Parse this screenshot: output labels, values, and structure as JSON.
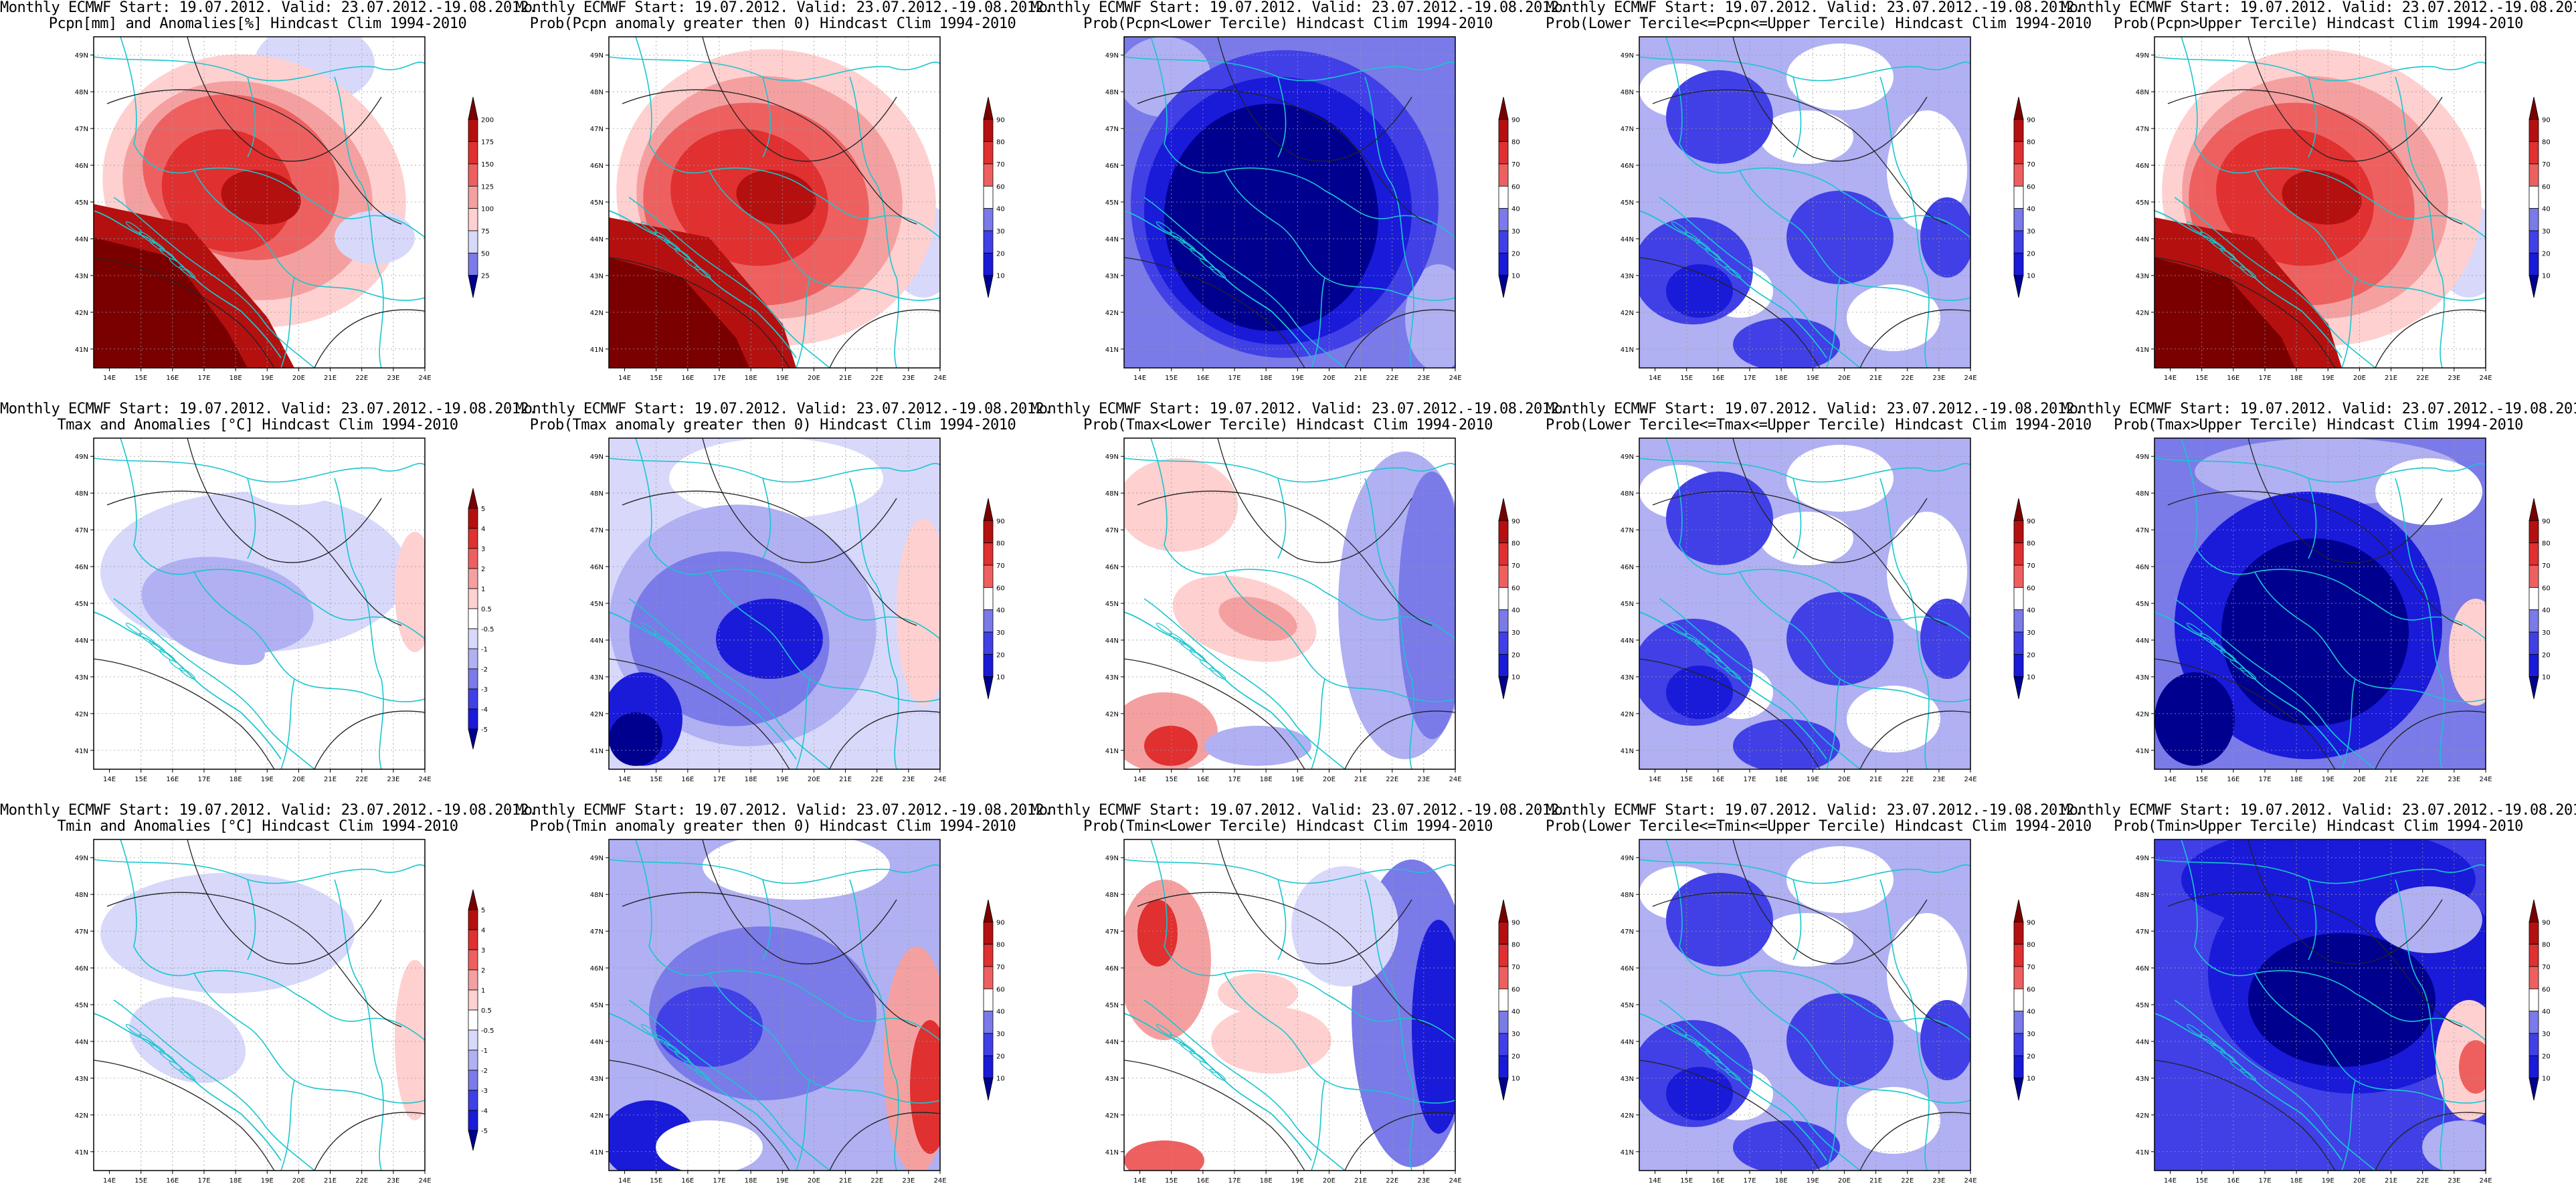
{
  "header_line": "Monthly ECMWF Start: 19.07.2012. Valid: 23.07.2012.-19.08.2012.",
  "map_bounds": {
    "lon": [
      13.5,
      24
    ],
    "lat": [
      40.5,
      49.5
    ]
  },
  "x_ticks": [
    "14E",
    "15E",
    "16E",
    "17E",
    "18E",
    "19E",
    "20E",
    "21E",
    "22E",
    "23E",
    "24E"
  ],
  "y_ticks": [
    "49N",
    "48N",
    "47N",
    "46N",
    "45N",
    "44N",
    "43N",
    "42N",
    "41N"
  ],
  "colors": {
    "red": [
      "#ffd0d0",
      "#f5a0a0",
      "#ee6060",
      "#e03030",
      "#b41010",
      "#7a0000"
    ],
    "blue": [
      "#d8d8fb",
      "#b0b0f3",
      "#7a7ae8",
      "#4040e6",
      "#1a1ad9",
      "#00008f"
    ],
    "white": "#ffffff",
    "border": "#19c6cf",
    "contour": "#222222"
  },
  "legend_sets": {
    "anom_pcpn": [
      "200",
      "175",
      "150",
      "125",
      "100",
      "75",
      "50",
      "25"
    ],
    "anom_temp": [
      "5",
      "4",
      "3",
      "2",
      "1",
      "0.5",
      "-0.5",
      "-1",
      "-2",
      "-3",
      "-4",
      "-5"
    ],
    "prob": [
      "90",
      "80",
      "70",
      "60",
      "40",
      "30",
      "20",
      "10"
    ]
  },
  "panels": [
    {
      "id": "p-r0c0",
      "row": 0,
      "col": 0,
      "line2": "Pcpn[mm] and Anomalies[%] Hindcast Clim 1994-2010",
      "legend": "anom_pcpn",
      "pattern": "pcpn_anom"
    },
    {
      "id": "p-r0c1",
      "row": 0,
      "col": 1,
      "line2": "Prob(Pcpn anomaly greater then 0) Hindcast Clim 1994-2010",
      "legend": "prob",
      "pattern": "pcpn_red"
    },
    {
      "id": "p-r0c2",
      "row": 0,
      "col": 2,
      "line2": "Prob(Pcpn<Lower Tercile) Hindcast Clim 1994-2010",
      "legend": "prob",
      "pattern": "pcpn_blue"
    },
    {
      "id": "p-r0c3",
      "row": 0,
      "col": 3,
      "line2": "Prob(Lower Tercile<=Pcpn<=Upper Tercile) Hindcast Clim 1994-2010",
      "legend": "prob",
      "pattern": "mid_blue"
    },
    {
      "id": "p-r0c4",
      "row": 0,
      "col": 4,
      "line2": "Prob(Pcpn>Upper Tercile) Hindcast Clim 1994-2010",
      "legend": "prob",
      "pattern": "pcpn_red"
    },
    {
      "id": "p-r1c0",
      "row": 1,
      "col": 0,
      "line2": "Tmax and Anomalies [°C] Hindcast Clim 1994-2010",
      "legend": "anom_temp",
      "pattern": "tmax_anom"
    },
    {
      "id": "p-r1c1",
      "row": 1,
      "col": 1,
      "line2": "Prob(Tmax anomaly greater then 0) Hindcast Clim 1994-2010",
      "legend": "prob",
      "pattern": "tmax_prob_blue"
    },
    {
      "id": "p-r1c2",
      "row": 1,
      "col": 2,
      "line2": "Prob(Tmax<Lower Tercile) Hindcast Clim 1994-2010",
      "legend": "prob",
      "pattern": "tmax_lower"
    },
    {
      "id": "p-r1c3",
      "row": 1,
      "col": 3,
      "line2": "Prob(Lower Tercile<=Tmax<=Upper Tercile) Hindcast Clim 1994-2010",
      "legend": "prob",
      "pattern": "mid_blue"
    },
    {
      "id": "p-r1c4",
      "row": 1,
      "col": 4,
      "line2": "Prob(Tmax>Upper Tercile) Hindcast Clim 1994-2010",
      "legend": "prob",
      "pattern": "deep_blue"
    },
    {
      "id": "p-r2c0",
      "row": 2,
      "col": 0,
      "line2": "Tmin and Anomalies [°C] Hindcast Clim 1994-2010",
      "legend": "anom_temp",
      "pattern": "tmin_anom"
    },
    {
      "id": "p-r2c1",
      "row": 2,
      "col": 1,
      "line2": "Prob(Tmin anomaly greater then 0) Hindcast Clim 1994-2010",
      "legend": "prob",
      "pattern": "tmin_prob"
    },
    {
      "id": "p-r2c2",
      "row": 2,
      "col": 2,
      "line2": "Prob(Tmin<Lower Tercile) Hindcast Clim 1994-2010",
      "legend": "prob",
      "pattern": "tmin_lower"
    },
    {
      "id": "p-r2c3",
      "row": 2,
      "col": 3,
      "line2": "Prob(Lower Tercile<=Tmin<=Upper Tercile) Hindcast Clim 1994-2010",
      "legend": "prob",
      "pattern": "mid_blue"
    },
    {
      "id": "p-r2c4",
      "row": 2,
      "col": 4,
      "line2": "Prob(Tmin>Upper Tercile) Hindcast Clim 1994-2010",
      "legend": "prob",
      "pattern": "deep_blue_red_edge"
    }
  ]
}
